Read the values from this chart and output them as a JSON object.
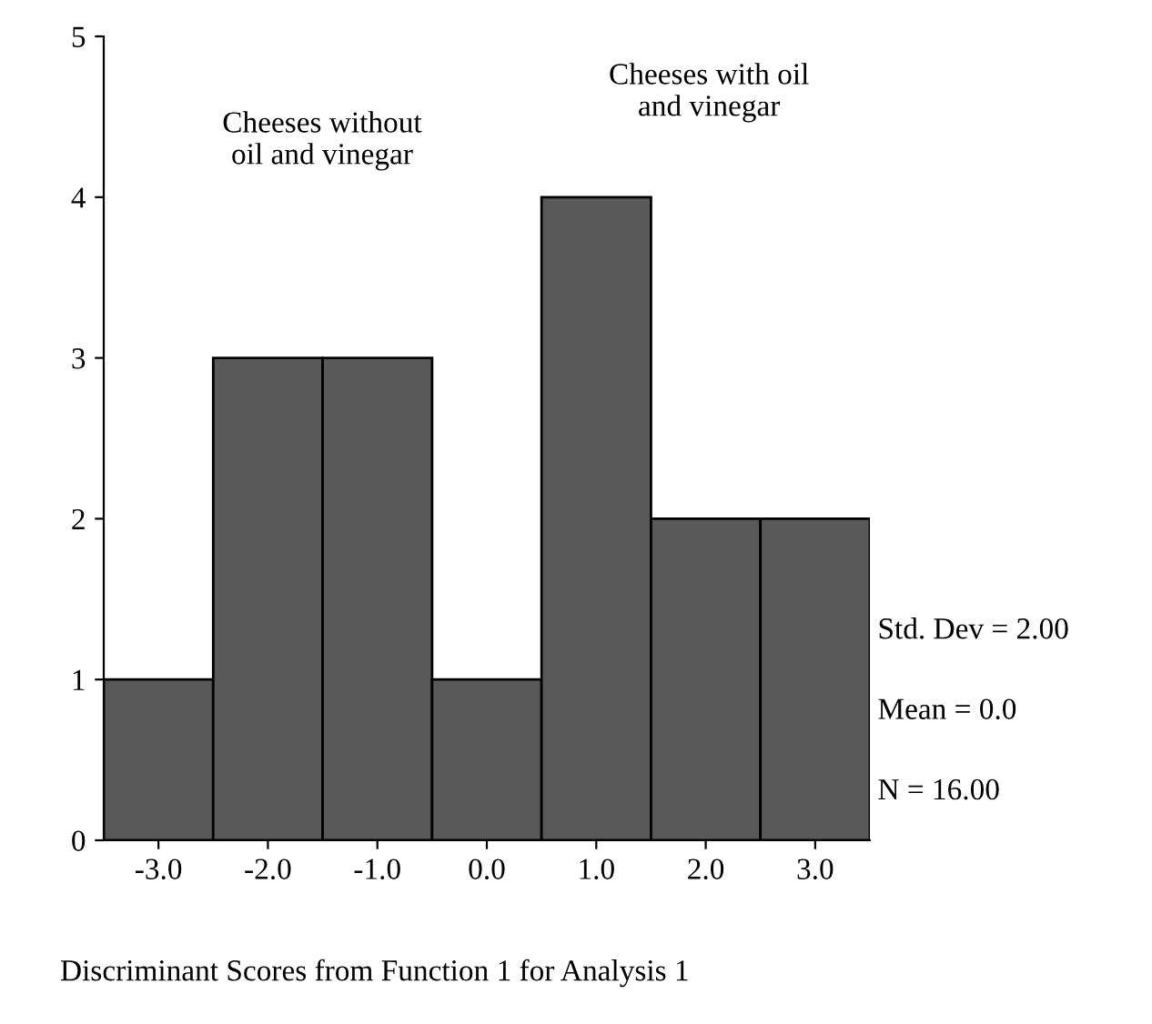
{
  "chart_data": {
    "type": "histogram",
    "xlabel": "Discriminant Scores from Function 1 for Analysis 1",
    "bins": [
      -3.5,
      -2.5,
      -1.5,
      -0.5,
      0.5,
      1.5,
      2.5,
      3.5
    ],
    "values": [
      1,
      3,
      3,
      1,
      4,
      2,
      2
    ],
    "color": "#595959",
    "xlim": [
      -3.5,
      3.5
    ],
    "xticks": [
      {
        "value": -3,
        "label": "-3.0"
      },
      {
        "value": -2,
        "label": "-2.0"
      },
      {
        "value": -1,
        "label": "-1.0"
      },
      {
        "value": 0,
        "label": "0.0"
      },
      {
        "value": 1,
        "label": "1.0"
      },
      {
        "value": 2,
        "label": "2.0"
      },
      {
        "value": 3,
        "label": "3.0"
      }
    ],
    "ylim": [
      0,
      5
    ],
    "yticks": [
      0,
      1,
      2,
      3,
      4,
      5
    ],
    "grid": false,
    "annotations": [
      "Cheeses without\noil and vinegar",
      "Cheeses with oil\nand vinegar",
      "Std. Dev = 2.00",
      "Mean = 0.0",
      "N = 16.00"
    ]
  }
}
